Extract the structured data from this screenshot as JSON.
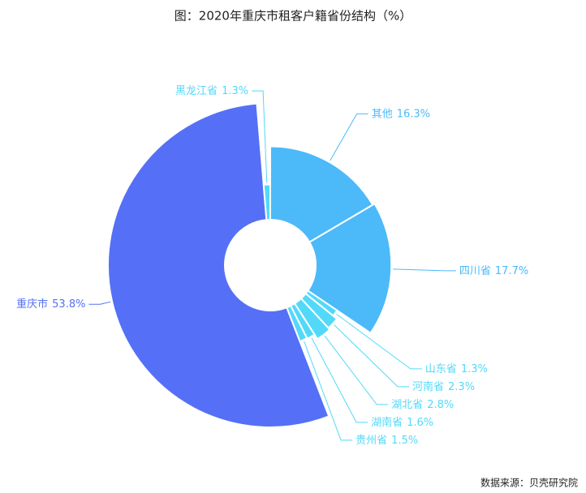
{
  "chart_data": {
    "type": "rose-pie",
    "title": "图：2020年重庆市租客户籍省份结构（%）",
    "source": "数据来源：贝壳研究院",
    "categories": [
      "其他",
      "四川省",
      "山东省",
      "河南省",
      "湖北省",
      "湖南省",
      "贵州省",
      "重庆市",
      "黑龙江省"
    ],
    "values": [
      16.3,
      17.7,
      1.3,
      2.3,
      2.8,
      1.6,
      1.5,
      53.8,
      1.3
    ],
    "value_labels": [
      "16.3%",
      "17.7%",
      "1.3%",
      "2.3%",
      "2.8%",
      "1.6%",
      "1.5%",
      "53.8%",
      "1.3%"
    ],
    "colors": [
      "#4cb9f9",
      "#4cb9f9",
      "#52d9f9",
      "#52d9f9",
      "#52d9f9",
      "#52d9f9",
      "#52d9f9",
      "#5570f6",
      "#52d9f9"
    ]
  }
}
